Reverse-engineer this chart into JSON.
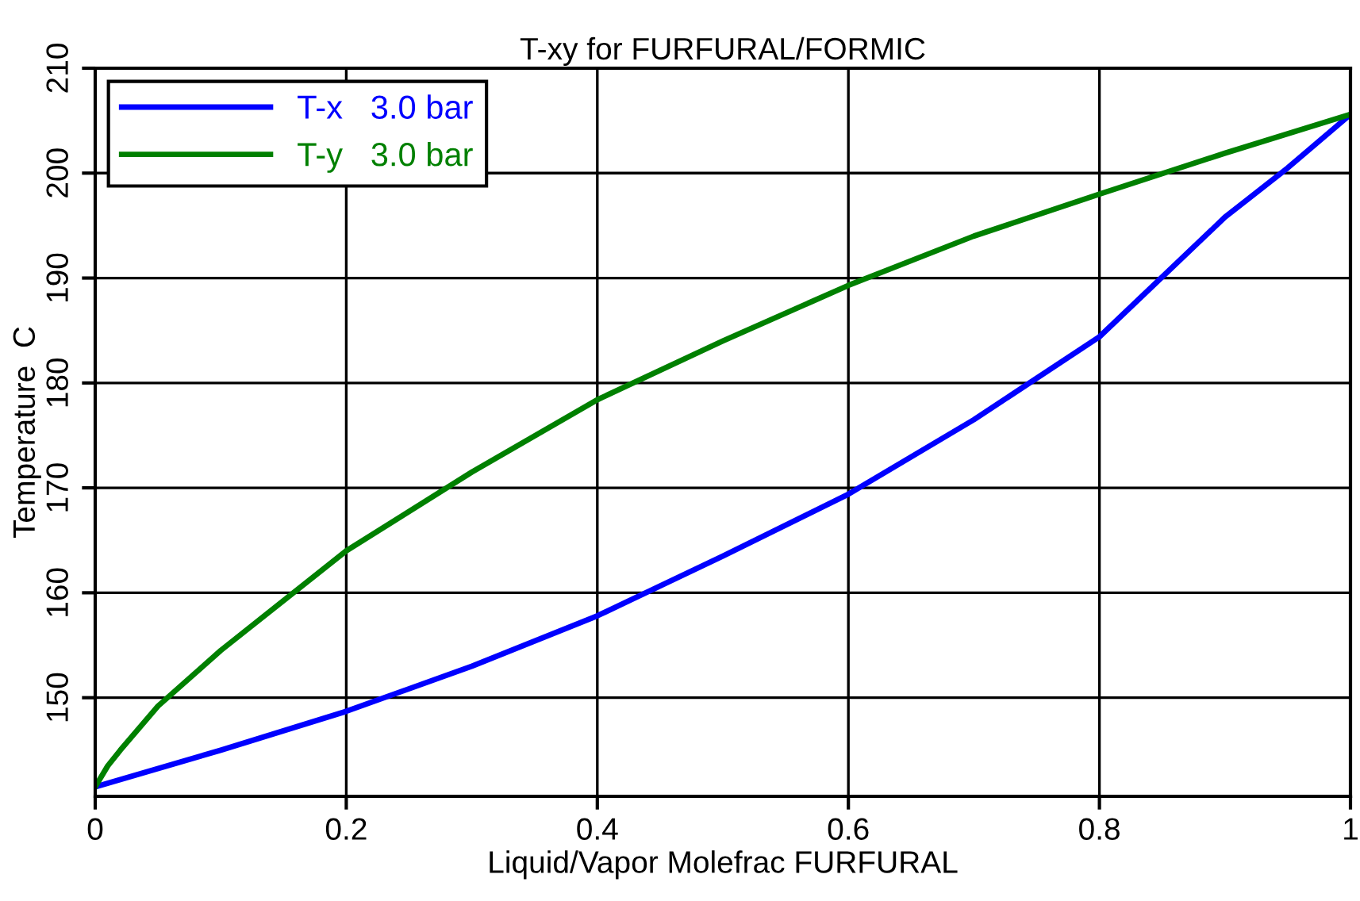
{
  "chart_data": {
    "type": "line",
    "title": "T-xy for FURFURAL/FORMIC",
    "xlabel": "Liquid/Vapor Molefrac FURFURAL",
    "ylabel": "Temperature  C",
    "xlim": [
      0,
      1
    ],
    "xticks": [
      0,
      0.2,
      0.4,
      0.6,
      0.8,
      1
    ],
    "ylim": [
      140.6,
      210
    ],
    "yticks": [
      150,
      160,
      170,
      180,
      190,
      200,
      210
    ],
    "grid": true,
    "legend": "top left",
    "series": [
      {
        "name": "T-x   3.0 bar",
        "color": "#0000ff",
        "x": [
          0,
          0.1,
          0.2,
          0.3,
          0.4,
          0.5,
          0.6,
          0.7,
          0.8,
          0.9,
          0.95,
          1
        ],
        "values": [
          141.5,
          145.0,
          148.7,
          153.0,
          157.8,
          163.5,
          169.4,
          176.5,
          184.4,
          195.8,
          200.5,
          205.6
        ]
      },
      {
        "name": "T-y   3.0 bar",
        "color": "#008000",
        "x": [
          0,
          0.01,
          0.02,
          0.05,
          0.1,
          0.2,
          0.3,
          0.4,
          0.5,
          0.6,
          0.7,
          0.8,
          0.9,
          1
        ],
        "values": [
          141.5,
          143.5,
          145.0,
          149.2,
          154.5,
          164.0,
          171.5,
          178.4,
          184.0,
          189.3,
          194.0,
          198.0,
          201.9,
          205.6
        ]
      }
    ]
  }
}
